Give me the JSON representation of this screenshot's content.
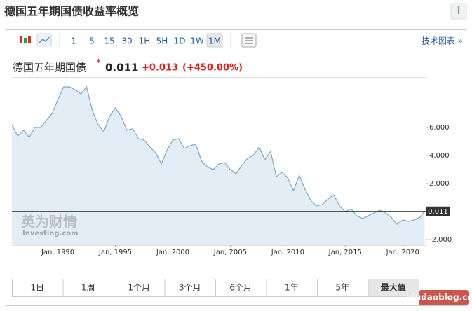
{
  "header": {
    "title": "德国五年期国债收益率概览",
    "info": "i"
  },
  "toolbar": {
    "intervals": [
      "1",
      "5",
      "15",
      "30",
      "1H",
      "5H",
      "1D",
      "1W",
      "1M"
    ],
    "selected": 8,
    "tech_link": "技术图表 »"
  },
  "quote": {
    "name": "德国五年期国债",
    "marker": "*",
    "price": "0.011",
    "change": "+0.013",
    "change_pct": "(+450.00%)"
  },
  "chart_data": {
    "type": "area",
    "color": "#7fa8c9",
    "fill": "#e3edf5",
    "x": [
      1986.0,
      1986.5,
      1987.0,
      1987.5,
      1988.0,
      1988.5,
      1989.0,
      1989.5,
      1990.0,
      1990.5,
      1991.0,
      1991.5,
      1992.0,
      1992.5,
      1993.0,
      1993.5,
      1994.0,
      1994.5,
      1995.0,
      1995.5,
      1996.0,
      1996.5,
      1997.0,
      1997.5,
      1998.0,
      1998.5,
      1999.0,
      1999.5,
      2000.0,
      2000.5,
      2001.0,
      2001.5,
      2002.0,
      2002.5,
      2003.0,
      2003.5,
      2004.0,
      2004.5,
      2005.0,
      2005.5,
      2006.0,
      2006.5,
      2007.0,
      2007.5,
      2008.0,
      2008.5,
      2009.0,
      2009.5,
      2010.0,
      2010.5,
      2011.0,
      2011.5,
      2012.0,
      2012.5,
      2013.0,
      2013.5,
      2014.0,
      2014.5,
      2015.0,
      2015.5,
      2016.0,
      2016.5,
      2017.0,
      2017.5,
      2018.0,
      2018.5,
      2019.0,
      2019.5,
      2020.0,
      2020.5,
      2021.0,
      2021.5,
      2021.9
    ],
    "values": [
      6.2,
      5.4,
      5.8,
      5.3,
      6.0,
      6.0,
      6.5,
      7.0,
      8.0,
      8.9,
      8.9,
      8.7,
      8.4,
      8.9,
      7.2,
      6.2,
      5.7,
      6.8,
      7.4,
      6.8,
      5.8,
      5.9,
      5.2,
      5.1,
      4.6,
      4.2,
      3.4,
      4.4,
      5.1,
      5.2,
      4.5,
      4.7,
      4.8,
      3.6,
      3.2,
      3.0,
      3.4,
      3.5,
      3.0,
      2.7,
      3.3,
      3.8,
      4.0,
      4.6,
      3.7,
      4.3,
      2.5,
      2.8,
      2.4,
      1.5,
      2.6,
      1.6,
      0.8,
      0.4,
      0.5,
      0.9,
      1.2,
      0.4,
      0.0,
      0.2,
      -0.3,
      -0.5,
      -0.3,
      -0.1,
      0.1,
      -0.1,
      -0.4,
      -0.9,
      -0.6,
      -0.7,
      -0.6,
      -0.4,
      0.011
    ],
    "current_value": 0.011,
    "current_label": "0.011",
    "xlim": [
      1986,
      2022
    ],
    "ylim": [
      -2.4,
      9.6
    ],
    "xticks": [
      {
        "value": 1990,
        "label": "Jan, 1990"
      },
      {
        "value": 1995,
        "label": "Jan, 1995"
      },
      {
        "value": 2000,
        "label": "Jan, 2000"
      },
      {
        "value": 2005,
        "label": "Jan, 2005"
      },
      {
        "value": 2010,
        "label": "Jan, 2010"
      },
      {
        "value": 2015,
        "label": "Jan, 2015"
      },
      {
        "value": 2020,
        "label": "Jan, 2020"
      }
    ],
    "yticks": [
      {
        "value": 6,
        "label": "6.000"
      },
      {
        "value": 4,
        "label": "4.000"
      },
      {
        "value": 2,
        "label": "2.000"
      },
      {
        "value": -2,
        "label": "-2.000"
      }
    ],
    "watermark": {
      "brand": "英为财情",
      "site": "Investing.com"
    }
  },
  "ranges": {
    "items": [
      "1日",
      "1周",
      "1个月",
      "3个月",
      "6个月",
      "1年",
      "5年",
      "最大值"
    ],
    "selected": 7
  },
  "watermark": "niudaoblog.com"
}
